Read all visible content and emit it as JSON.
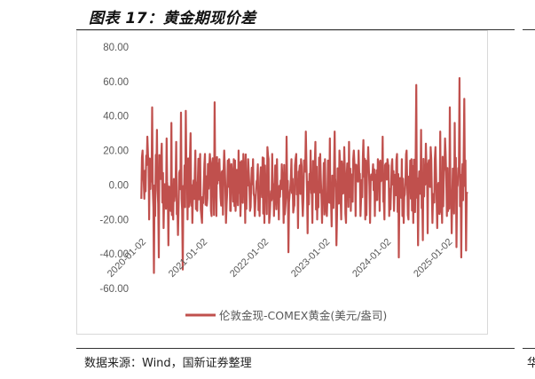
{
  "header": {
    "title": "图表 17：黄金期现价差"
  },
  "footer": {
    "source": "数据来源：Wind，国新证券整理",
    "right_stub": "华"
  },
  "chart_data": {
    "type": "line",
    "title": "",
    "xlabel": "",
    "ylabel": "",
    "ylim": [
      -60,
      80
    ],
    "yticks": [
      -60,
      -40,
      -20,
      0,
      20,
      40,
      60,
      80
    ],
    "ytick_labels": [
      "-60.00",
      "-40.00",
      "-20.00",
      "0.00",
      "20.00",
      "40.00",
      "60.00",
      "80.00"
    ],
    "xtick_labels": [
      "2020-01-02",
      "2021-01-02",
      "2022-01-02",
      "2023-01-02",
      "2024-01-02",
      "2025-01-02"
    ],
    "grid": false,
    "legend": "bottom",
    "color": "#c0504d",
    "series": [
      {
        "name": "伦敦金现-COMEX黄金(美元/盎司)",
        "dates": [
          "2020-01",
          "2020-02",
          "2020-03",
          "2020-04",
          "2020-05",
          "2020-06",
          "2020-07",
          "2020-08",
          "2020-09",
          "2020-10",
          "2020-11",
          "2020-12",
          "2021-01",
          "2021-02",
          "2021-03",
          "2021-04",
          "2021-05",
          "2021-06",
          "2021-07",
          "2021-08",
          "2021-09",
          "2021-10",
          "2021-11",
          "2021-12",
          "2022-01",
          "2022-02",
          "2022-03",
          "2022-04",
          "2022-05",
          "2022-06",
          "2022-07",
          "2022-08",
          "2022-09",
          "2022-10",
          "2022-11",
          "2022-12",
          "2023-01",
          "2023-02",
          "2023-03",
          "2023-04",
          "2023-05",
          "2023-06",
          "2023-07",
          "2023-08",
          "2023-09",
          "2023-10",
          "2023-11",
          "2023-12",
          "2024-01",
          "2024-02",
          "2024-03",
          "2024-04",
          "2024-05",
          "2024-06",
          "2024-07",
          "2024-08",
          "2024-09",
          "2024-10",
          "2024-11",
          "2024-12",
          "2025-01",
          "2025-02",
          "2025-03",
          "2025-04",
          "2025-05",
          "2025-06",
          "2025-07",
          "2025-08"
        ],
        "max": [
          20,
          28,
          45,
          32,
          24,
          27,
          36,
          25,
          42,
          43,
          30,
          20,
          18,
          18,
          18,
          48,
          15,
          20,
          15,
          15,
          20,
          18,
          15,
          15,
          12,
          16,
          22,
          18,
          15,
          12,
          28,
          15,
          18,
          15,
          31,
          20,
          25,
          18,
          15,
          27,
          31,
          20,
          22,
          25,
          20,
          20,
          26,
          22,
          12,
          15,
          28,
          15,
          15,
          18,
          15,
          20,
          15,
          58,
          32,
          24,
          22,
          22,
          31,
          27,
          45,
          36,
          62,
          50
        ],
        "min": [
          -8,
          -20,
          -51,
          -42,
          -25,
          -35,
          -20,
          -29,
          -49,
          -20,
          -22,
          -15,
          -22,
          -12,
          -18,
          -18,
          -12,
          -22,
          -15,
          -15,
          -18,
          -22,
          -15,
          -18,
          -18,
          -22,
          -22,
          -18,
          -20,
          -22,
          -39,
          -16,
          -25,
          -18,
          -28,
          -22,
          -20,
          -22,
          -18,
          -24,
          -35,
          -20,
          -22,
          -15,
          -18,
          -18,
          -20,
          -22,
          -18,
          -15,
          -20,
          -18,
          -15,
          -42,
          -22,
          -20,
          -22,
          -35,
          -32,
          -28,
          -22,
          -25,
          -22,
          -18,
          -28,
          -36,
          -42,
          -38
        ]
      }
    ]
  }
}
